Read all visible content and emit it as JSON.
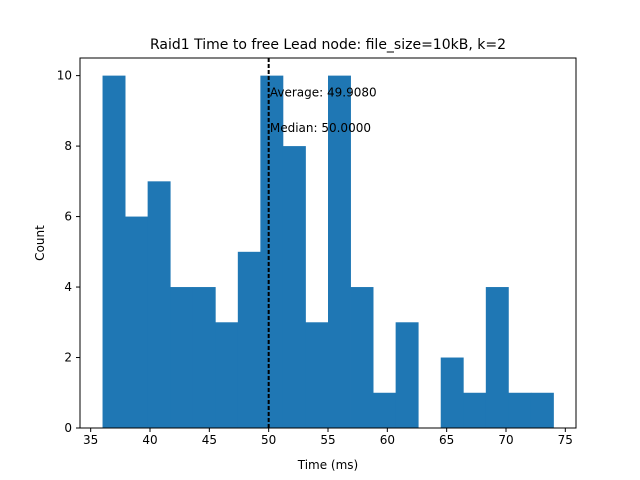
{
  "chart_data": {
    "type": "bar",
    "title": "Raid1 Time to free Lead node: file_size=10kB, k=2",
    "xlabel": "Time (ms)",
    "ylabel": "Count",
    "xlim": [
      34.1,
      75.9
    ],
    "ylim": [
      0,
      10.5
    ],
    "xticks": [
      35,
      40,
      45,
      50,
      55,
      60,
      65,
      70,
      75
    ],
    "yticks": [
      0,
      2,
      4,
      6,
      8,
      10
    ],
    "bin_edges": [
      36.0,
      37.9,
      39.8,
      41.7,
      43.6,
      45.5,
      47.4,
      49.3,
      51.2,
      53.1,
      55.0,
      56.9,
      58.8,
      60.7,
      62.6,
      64.5,
      66.4,
      68.3,
      70.2,
      72.1,
      74.0
    ],
    "values": [
      10,
      6,
      7,
      4,
      4,
      3,
      5,
      10,
      8,
      3,
      10,
      4,
      1,
      3,
      0,
      2,
      1,
      4,
      1,
      1
    ],
    "bar_color": "#1f77b4",
    "vline": {
      "x": 50.0,
      "style": "dashed",
      "color": "#000000"
    },
    "annotations": [
      {
        "text": "Average: 49.9080",
        "x": 50.1,
        "y": 9.5
      },
      {
        "text": "Median: 50.0000",
        "x": 50.1,
        "y": 8.5
      }
    ],
    "grid": false
  }
}
